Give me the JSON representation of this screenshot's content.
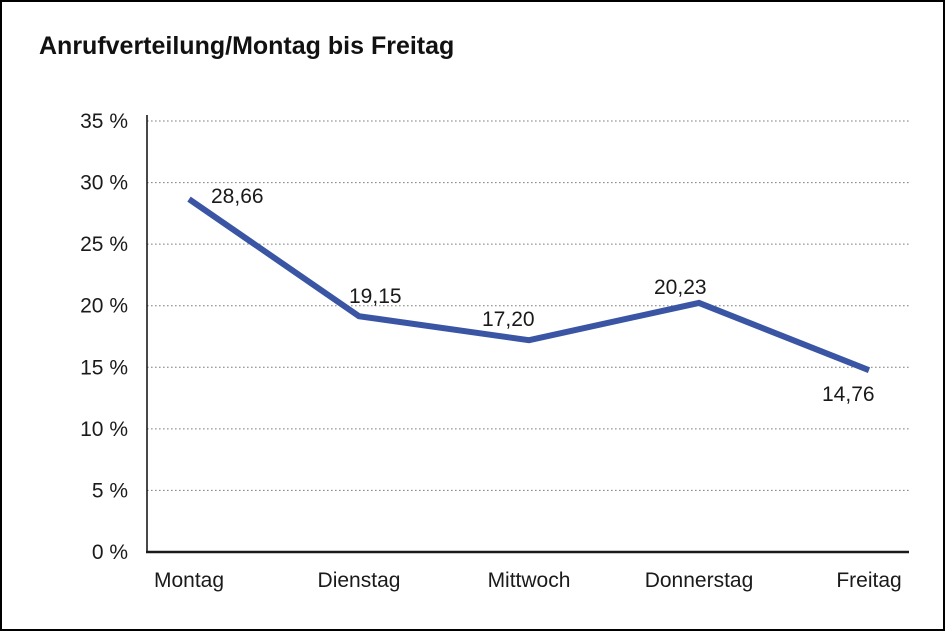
{
  "chart_data": {
    "type": "line",
    "title": "Anrufverteilung/Montag bis Freitag",
    "categories": [
      "Montag",
      "Dienstag",
      "Mittwoch",
      "Donnerstag",
      "Freitag"
    ],
    "values": [
      28.66,
      19.15,
      17.2,
      20.23,
      14.76
    ],
    "point_labels": [
      "28,66",
      "19,15",
      "17,20",
      "20,23",
      "14,76"
    ],
    "y_tick_labels": [
      "0 %",
      "5 %",
      "10 %",
      "15 %",
      "20 %",
      "25 %",
      "30 %",
      "35 %"
    ],
    "xlabel": "",
    "ylabel": "",
    "ylim": [
      0,
      35
    ],
    "y_step": 5,
    "grid": "horizontal-dotted",
    "legend": "none",
    "line_color": "#3A55A4"
  },
  "colors": {
    "line": "#3A55A4",
    "axis": "#1a1a1a",
    "grid": "#7d7d7d",
    "text": "#1a1a1a",
    "background": "#ffffff",
    "border": "#000000"
  }
}
